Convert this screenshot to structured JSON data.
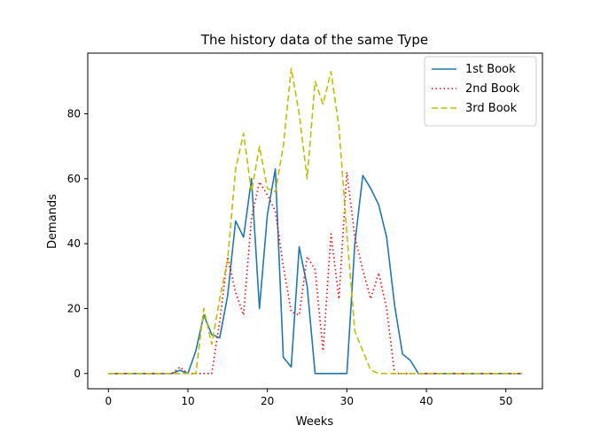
{
  "chart_data": {
    "type": "line",
    "title": "The history data of the same Type",
    "xlabel": "Weeks",
    "ylabel": "Demands",
    "xlim": [
      -2.6,
      54.6
    ],
    "ylim": [
      -4.7,
      98.7
    ],
    "xticks": [
      0,
      10,
      20,
      30,
      40,
      50
    ],
    "yticks": [
      0,
      20,
      40,
      60,
      80
    ],
    "grid": false,
    "legend_position": "top-right",
    "series": [
      {
        "name": "1st Book",
        "color": "#1f77b4",
        "style": "solid",
        "x": [
          0,
          1,
          2,
          3,
          4,
          5,
          6,
          7,
          8,
          9,
          10,
          11,
          12,
          13,
          14,
          15,
          16,
          17,
          18,
          19,
          20,
          21,
          22,
          23,
          24,
          25,
          26,
          27,
          28,
          29,
          30,
          31,
          32,
          33,
          34,
          35,
          36,
          37,
          38,
          39,
          40,
          41,
          42,
          43,
          44,
          45,
          46,
          47,
          48,
          49,
          50,
          51,
          52
        ],
        "y": [
          0,
          0,
          0,
          0,
          0,
          0,
          0,
          0,
          0,
          1,
          0,
          7,
          18,
          12,
          11,
          24,
          47,
          42,
          60,
          20,
          49,
          63,
          5,
          2,
          39,
          27,
          0,
          0,
          0,
          0,
          0,
          40,
          61,
          57,
          52,
          42,
          21,
          6,
          4,
          0,
          0,
          0,
          0,
          0,
          0,
          0,
          0,
          0,
          0,
          0,
          0,
          0,
          0
        ]
      },
      {
        "name": "2nd Book",
        "color": "#ff0000",
        "style": "dotted",
        "x": [
          0,
          1,
          2,
          3,
          4,
          5,
          6,
          7,
          8,
          9,
          10,
          11,
          12,
          13,
          14,
          15,
          16,
          17,
          18,
          19,
          20,
          21,
          22,
          23,
          24,
          25,
          26,
          27,
          28,
          29,
          30,
          31,
          32,
          33,
          34,
          35,
          36,
          37,
          38,
          39,
          40,
          41,
          42,
          43,
          44,
          45,
          46,
          47,
          48,
          49,
          50,
          51,
          52
        ],
        "y": [
          0,
          0,
          0,
          0,
          0,
          0,
          0,
          0,
          0,
          2,
          0,
          0,
          0,
          0,
          16,
          36,
          25,
          18,
          48,
          59,
          55,
          50,
          33,
          19,
          18,
          36,
          32,
          7,
          43,
          23,
          62,
          42,
          32,
          23,
          31,
          20,
          0,
          0,
          0,
          0,
          0,
          0,
          0,
          0,
          0,
          0,
          0,
          0,
          0,
          0,
          0,
          0,
          0
        ]
      },
      {
        "name": "3rd Book",
        "color": "#bfbf00",
        "style": "dashed",
        "x": [
          0,
          1,
          2,
          3,
          4,
          5,
          6,
          7,
          8,
          9,
          10,
          11,
          12,
          13,
          14,
          15,
          16,
          17,
          18,
          19,
          20,
          21,
          22,
          23,
          24,
          25,
          26,
          27,
          28,
          29,
          30,
          31,
          32,
          33,
          34,
          35,
          36,
          37,
          38,
          39,
          40,
          41,
          42,
          43,
          44,
          45,
          46,
          47,
          48,
          49,
          50,
          51,
          52
        ],
        "y": [
          0,
          0,
          0,
          0,
          0,
          0,
          0,
          0,
          0,
          0,
          0,
          0,
          20,
          9,
          23,
          35,
          63,
          74,
          56,
          70,
          57,
          56,
          70,
          94,
          80,
          60,
          90,
          83,
          93,
          76,
          43,
          13,
          7,
          1,
          0,
          0,
          0,
          0,
          0,
          0,
          0,
          0,
          0,
          0,
          0,
          0,
          0,
          0,
          0,
          0,
          0,
          0,
          0
        ]
      }
    ]
  }
}
